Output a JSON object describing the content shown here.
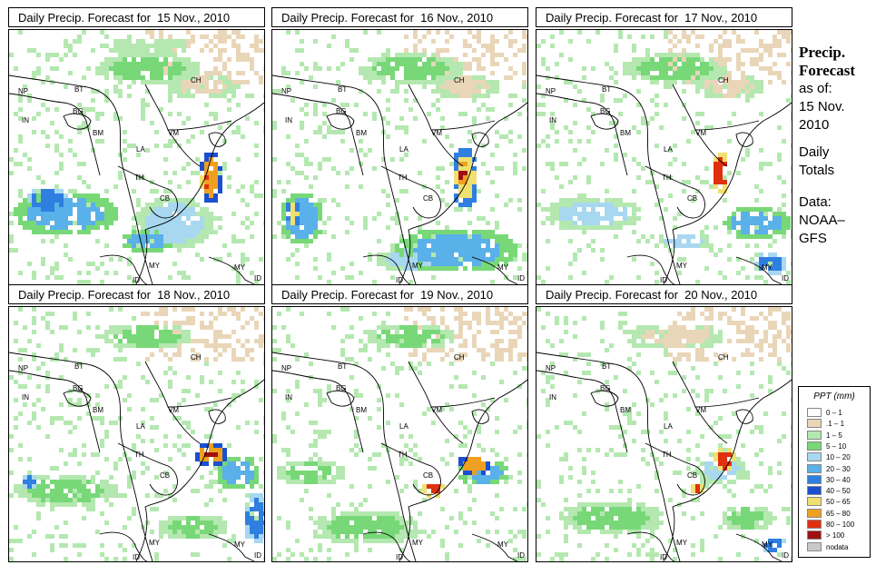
{
  "panels": [
    {
      "title": "Daily Precip. Forecast for  15 Nov., 2010"
    },
    {
      "title": "Daily Precip. Forecast for  16 Nov., 2010"
    },
    {
      "title": "Daily Precip. Forecast for  17 Nov., 2010"
    },
    {
      "title": "Daily Precip. Forecast for  18 Nov., 2010"
    },
    {
      "title": "Daily Precip. Forecast for  19 Nov., 2010"
    },
    {
      "title": "Daily Precip. Forecast for  20 Nov., 2010"
    }
  ],
  "country_labels": [
    "NP",
    "BT",
    "BG",
    "IN",
    "BM",
    "LA",
    "VM",
    "CH",
    "TH",
    "CB",
    "MY",
    "ID",
    "MY",
    "ID"
  ],
  "sidebar": {
    "title_line1": "Precip.",
    "title_line2": "Forecast",
    "asof_line1": "as of:",
    "asof_line2": "15 Nov.",
    "asof_line3": "2010",
    "daily_line1": "Daily",
    "daily_line2": "Totals",
    "data_line1": "Data:",
    "data_line2": "NOAA–",
    "data_line3": "GFS"
  },
  "legend": {
    "title": "PPT (mm)",
    "items": [
      {
        "label": "0 – 1",
        "color": "#ffffff"
      },
      {
        "label": ".1 – 1",
        "color": "#e9d6b8"
      },
      {
        "label": "1 – 5",
        "color": "#b4e8b0"
      },
      {
        "label": "5 – 10",
        "color": "#78d878"
      },
      {
        "label": "10 – 20",
        "color": "#a8d8f0"
      },
      {
        "label": "20 – 30",
        "color": "#5ab0e8"
      },
      {
        "label": "30 – 40",
        "color": "#2f7fe0"
      },
      {
        "label": "40 – 50",
        "color": "#1a50d0"
      },
      {
        "label": "50 – 65",
        "color": "#f0e070"
      },
      {
        "label": "65 – 80",
        "color": "#f0a020"
      },
      {
        "label": "80 – 100",
        "color": "#e03010"
      },
      {
        "label": "> 100",
        "color": "#a01010"
      },
      {
        "label": "nodata",
        "color": "#c8c8c8"
      }
    ]
  }
}
